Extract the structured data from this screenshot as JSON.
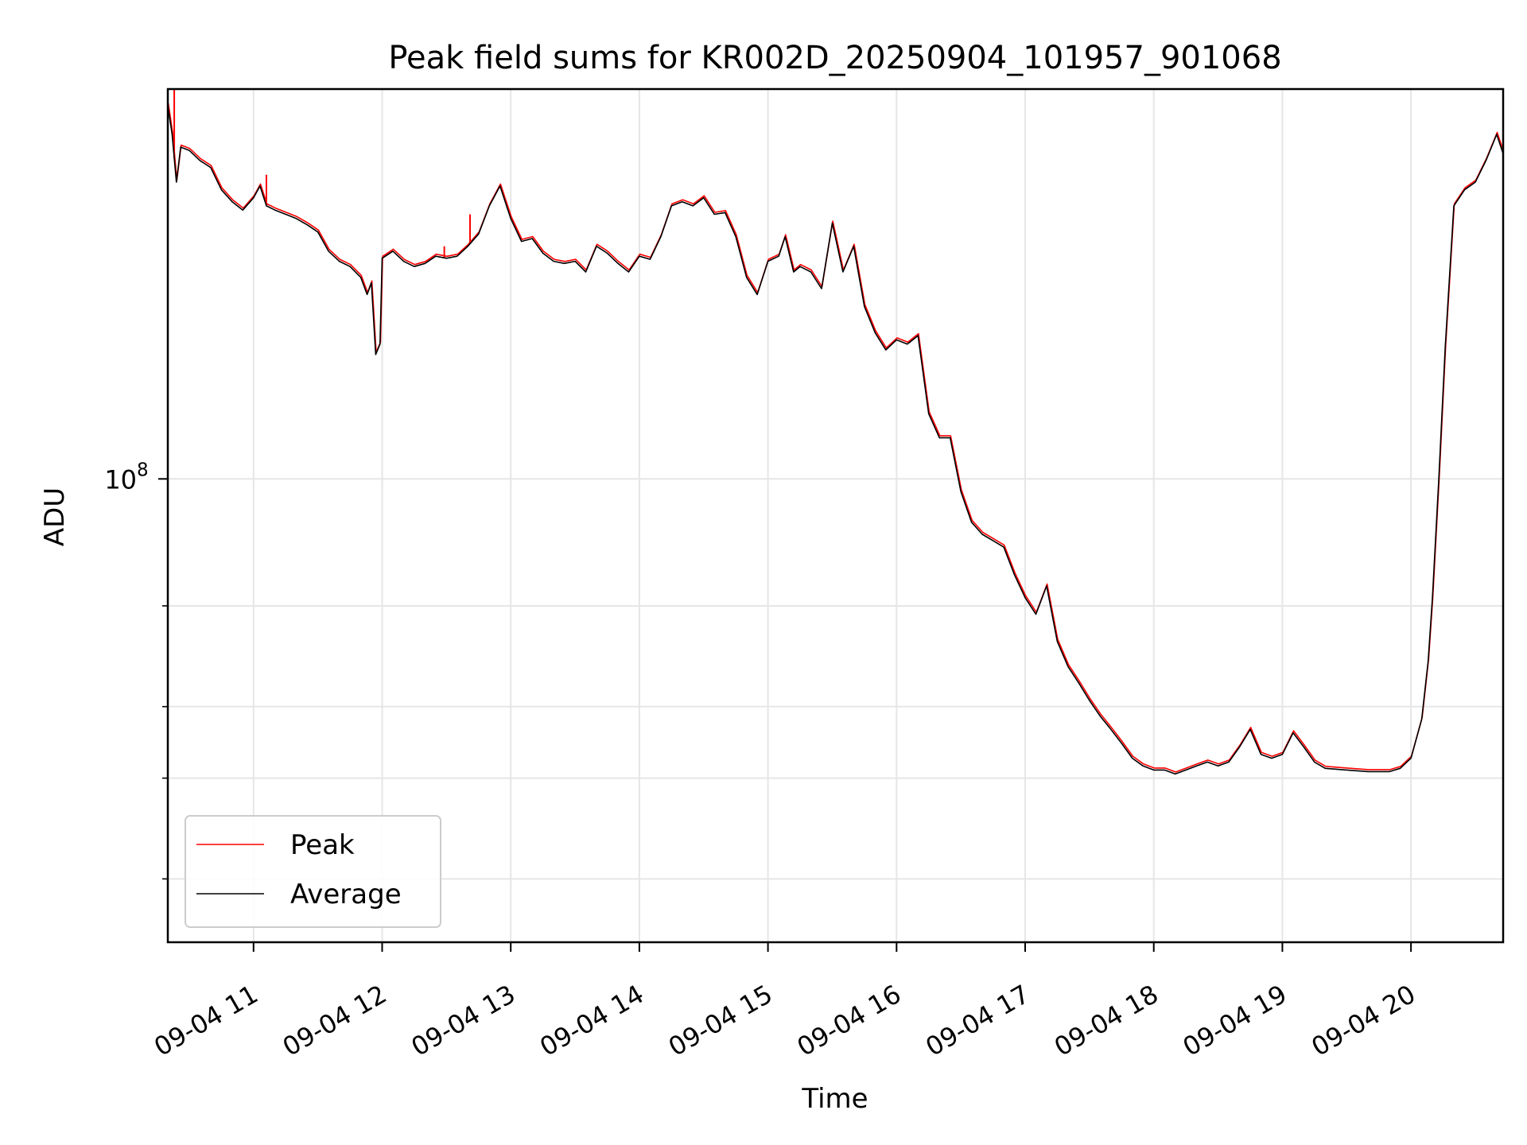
{
  "chart_data": {
    "type": "line",
    "title": "Peak field sums for KR002D_20250904_101957_901068",
    "xlabel": "Time",
    "ylabel": "ADU",
    "x_axis": {
      "type": "time",
      "tick_labels": [
        "09-04 11",
        "09-04 12",
        "09-04 13",
        "09-04 14",
        "09-04 15",
        "09-04 16",
        "09-04 17",
        "09-04 18",
        "09-04 19",
        "09-04 20"
      ],
      "range": [
        "09-04 10:20",
        "09-04 20:43"
      ]
    },
    "y_axis": {
      "scale": "log",
      "major_tick_label_base": "10",
      "major_tick_label_exponent": "8",
      "minor_ticks": [
        20000000,
        30000000,
        40000000,
        60000000
      ],
      "range": [
        15500000,
        480000000
      ]
    },
    "grid": true,
    "legend": {
      "position": "lower-left",
      "entries": [
        "Peak",
        "Average"
      ]
    },
    "colors": {
      "peak": "#ff0000",
      "average": "#000000"
    },
    "series": [
      {
        "name": "Peak",
        "color": "#ff0000",
        "spikes": [
          {
            "time": "10:23",
            "value": 480000000
          },
          {
            "time": "11:06",
            "value": 340000000
          },
          {
            "time": "12:29",
            "value": 255000000
          },
          {
            "time": "12:41",
            "value": 290000000
          }
        ]
      },
      {
        "name": "Average",
        "color": "#000000"
      }
    ],
    "points": [
      [
        "10:20",
        450000000
      ],
      [
        "10:22",
        400000000
      ],
      [
        "10:24",
        330000000
      ],
      [
        "10:26",
        380000000
      ],
      [
        "10:30",
        375000000
      ],
      [
        "10:35",
        360000000
      ],
      [
        "10:40",
        350000000
      ],
      [
        "10:45",
        320000000
      ],
      [
        "10:50",
        305000000
      ],
      [
        "10:55",
        295000000
      ],
      [
        "11:00",
        310000000
      ],
      [
        "11:03",
        325000000
      ],
      [
        "11:06",
        300000000
      ],
      [
        "11:10",
        295000000
      ],
      [
        "11:15",
        290000000
      ],
      [
        "11:20",
        285000000
      ],
      [
        "11:25",
        278000000
      ],
      [
        "11:30",
        270000000
      ],
      [
        "11:35",
        250000000
      ],
      [
        "11:40",
        240000000
      ],
      [
        "11:45",
        235000000
      ],
      [
        "11:50",
        225000000
      ],
      [
        "11:53",
        210000000
      ],
      [
        "11:55",
        220000000
      ],
      [
        "11:57",
        165000000
      ],
      [
        "11:59",
        172000000
      ],
      [
        "12:00",
        243000000
      ],
      [
        "12:05",
        250000000
      ],
      [
        "12:10",
        240000000
      ],
      [
        "12:15",
        235000000
      ],
      [
        "12:20",
        238000000
      ],
      [
        "12:25",
        245000000
      ],
      [
        "12:30",
        243000000
      ],
      [
        "12:35",
        245000000
      ],
      [
        "12:40",
        255000000
      ],
      [
        "12:45",
        268000000
      ],
      [
        "12:50",
        300000000
      ],
      [
        "12:55",
        325000000
      ],
      [
        "13:00",
        285000000
      ],
      [
        "13:05",
        260000000
      ],
      [
        "13:10",
        263000000
      ],
      [
        "13:15",
        248000000
      ],
      [
        "13:20",
        240000000
      ],
      [
        "13:25",
        238000000
      ],
      [
        "13:30",
        240000000
      ],
      [
        "13:35",
        230000000
      ],
      [
        "13:40",
        255000000
      ],
      [
        "13:45",
        248000000
      ],
      [
        "13:50",
        238000000
      ],
      [
        "13:55",
        230000000
      ],
      [
        "14:00",
        245000000
      ],
      [
        "14:05",
        242000000
      ],
      [
        "14:10",
        265000000
      ],
      [
        "14:15",
        300000000
      ],
      [
        "14:20",
        305000000
      ],
      [
        "14:25",
        300000000
      ],
      [
        "14:30",
        310000000
      ],
      [
        "14:35",
        290000000
      ],
      [
        "14:40",
        292000000
      ],
      [
        "14:45",
        265000000
      ],
      [
        "14:50",
        225000000
      ],
      [
        "14:55",
        210000000
      ],
      [
        "15:00",
        240000000
      ],
      [
        "15:05",
        245000000
      ],
      [
        "15:08",
        265000000
      ],
      [
        "15:12",
        230000000
      ],
      [
        "15:15",
        235000000
      ],
      [
        "15:20",
        230000000
      ],
      [
        "15:25",
        215000000
      ],
      [
        "15:30",
        280000000
      ],
      [
        "15:35",
        230000000
      ],
      [
        "15:40",
        255000000
      ],
      [
        "15:45",
        200000000
      ],
      [
        "15:50",
        180000000
      ],
      [
        "15:55",
        168000000
      ],
      [
        "16:00",
        175000000
      ],
      [
        "16:05",
        172000000
      ],
      [
        "16:10",
        178000000
      ],
      [
        "16:15",
        130000000
      ],
      [
        "16:20",
        118000000
      ],
      [
        "16:25",
        118000000
      ],
      [
        "16:30",
        95000000
      ],
      [
        "16:35",
        84000000
      ],
      [
        "16:40",
        80000000
      ],
      [
        "16:45",
        78000000
      ],
      [
        "16:50",
        76000000
      ],
      [
        "16:55",
        68000000
      ],
      [
        "17:00",
        62000000
      ],
      [
        "17:05",
        58000000
      ],
      [
        "17:10",
        65000000
      ],
      [
        "17:15",
        52000000
      ],
      [
        "17:20",
        47000000
      ],
      [
        "17:25",
        44000000
      ],
      [
        "17:30",
        41000000
      ],
      [
        "17:35",
        38500000
      ],
      [
        "17:40",
        36500000
      ],
      [
        "17:45",
        34500000
      ],
      [
        "17:50",
        32500000
      ],
      [
        "17:55",
        31500000
      ],
      [
        "18:00",
        31000000
      ],
      [
        "18:05",
        31000000
      ],
      [
        "18:10",
        30500000
      ],
      [
        "18:15",
        31000000
      ],
      [
        "18:20",
        31500000
      ],
      [
        "18:25",
        32000000
      ],
      [
        "18:30",
        31500000
      ],
      [
        "18:35",
        32000000
      ],
      [
        "18:40",
        34000000
      ],
      [
        "18:45",
        36500000
      ],
      [
        "18:50",
        33000000
      ],
      [
        "18:55",
        32500000
      ],
      [
        "19:00",
        33000000
      ],
      [
        "19:05",
        36000000
      ],
      [
        "19:10",
        34000000
      ],
      [
        "19:15",
        32000000
      ],
      [
        "19:20",
        31200000
      ],
      [
        "19:30",
        31000000
      ],
      [
        "19:40",
        30800000
      ],
      [
        "19:50",
        30800000
      ],
      [
        "19:55",
        31200000
      ],
      [
        "20:00",
        32500000
      ],
      [
        "20:05",
        38000000
      ],
      [
        "20:08",
        48000000
      ],
      [
        "20:10",
        62000000
      ],
      [
        "20:13",
        100000000
      ],
      [
        "20:16",
        170000000
      ],
      [
        "20:20",
        300000000
      ],
      [
        "20:25",
        320000000
      ],
      [
        "20:30",
        330000000
      ],
      [
        "20:35",
        360000000
      ],
      [
        "20:40",
        400000000
      ],
      [
        "20:43",
        370000000
      ]
    ]
  }
}
